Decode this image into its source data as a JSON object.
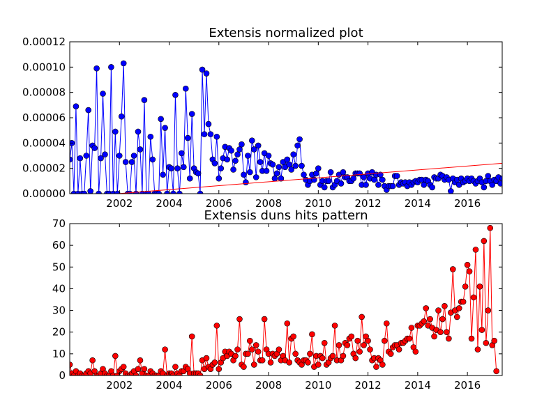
{
  "colors": {
    "blue_series": "#0000ff",
    "red_series": "#ff0000",
    "marker_edge": "#000000"
  },
  "chart_data": [
    {
      "type": "line",
      "title": "Extensis normalized plot",
      "xlabel": "",
      "ylabel": "",
      "xlim": [
        2000.0,
        2017.4
      ],
      "ylim": [
        0,
        0.00012
      ],
      "xticks": [
        2002,
        2004,
        2006,
        2008,
        2010,
        2012,
        2014,
        2016
      ],
      "xtick_labels": [
        "2002",
        "2004",
        "2006",
        "2008",
        "2010",
        "2012",
        "2014",
        "2016"
      ],
      "yticks": [
        0,
        2e-05,
        4e-05,
        6e-05,
        8e-05,
        0.0001,
        0.00012
      ],
      "ytick_labels": [
        "0.00000",
        "0.00002",
        "0.00004",
        "0.00006",
        "0.00008",
        "0.00010",
        "0.00012"
      ],
      "grid": false,
      "series": [
        {
          "color": "#0000ff",
          "marker": "circle",
          "x_start": 2000.0,
          "x_step": 0.08333,
          "values": [
            2.7e-05,
            4e-05,
            0,
            6.9e-05,
            0,
            2.8e-05,
            0,
            0,
            3e-05,
            6.6e-05,
            2e-06,
            3.8e-05,
            3.6e-05,
            9.9e-05,
            0,
            2.8e-05,
            7.9e-05,
            3.1e-05,
            0,
            0,
            0.0001,
            0,
            4.9e-05,
            0,
            3e-05,
            6.1e-05,
            0.000103,
            2.5e-05,
            0,
            0,
            2.5e-05,
            3e-05,
            0,
            4.9e-05,
            3.5e-05,
            0,
            7.4e-05,
            0,
            0,
            4.5e-05,
            2.7e-05,
            0,
            0,
            0,
            5.9e-05,
            1.5e-05,
            5.2e-05,
            0,
            2.1e-05,
            2e-05,
            0,
            7.8e-05,
            2e-05,
            0,
            3.2e-05,
            2.1e-05,
            8.3e-05,
            4.4e-05,
            1.2e-05,
            6.3e-05,
            2e-05,
            1.7e-05,
            1.6e-05,
            0,
            9.8e-05,
            4.7e-05,
            9.5e-05,
            5.5e-05,
            4.7e-05,
            2.7e-05,
            2.4e-05,
            4.5e-05,
            1.2e-05,
            2e-05,
            2.8e-05,
            3.7e-05,
            2.7e-05,
            3.6e-05,
            3.4e-05,
            1.9e-05,
            2.6e-05,
            3.1e-05,
            3.5e-05,
            3.9e-05,
            1.5e-05,
            9e-06,
            3e-05,
            1.7e-05,
            4.2e-05,
            3.5e-05,
            1.3e-05,
            3.8e-05,
            2.5e-05,
            1.8e-05,
            3.2e-05,
            1.8e-05,
            3e-05,
            2.4e-05,
            2.3e-05,
            1.2e-05,
            1.6e-05,
            2.1e-05,
            1.2e-05,
            2.5e-05,
            2.1e-05,
            2.7e-05,
            2.3e-05,
            1.9e-05,
            3.1e-05,
            2.2e-05,
            3.8e-05,
            4.3e-05,
            2.2e-05,
            1.5e-05,
            1.1e-05,
            7e-06,
            1e-05,
            1.5e-05,
            1.1e-05,
            1.6e-05,
            2e-05,
            7e-06,
            1e-05,
            5e-06,
            1e-05,
            1e-05,
            1.7e-05,
            5e-06,
            7e-06,
            1e-05,
            1.5e-05,
            8e-06,
            1.7e-05,
            1.3e-05,
            1.3e-05,
            1e-05,
            1e-05,
            1.2e-05,
            1.6e-05,
            1.6e-05,
            1.6e-05,
            7e-06,
            1.3e-05,
            7e-06,
            1.6e-05,
            1.2e-05,
            1.7e-05,
            1.1e-05,
            1.5e-05,
            7e-06,
            1.5e-05,
            1.1e-05,
            6e-06,
            3e-06,
            6e-06,
            6e-06,
            6e-06,
            1.4e-05,
            1.4e-05,
            7e-06,
            9e-06,
            8e-06,
            9e-06,
            6e-06,
            9e-06,
            7e-06,
            9e-06,
            1e-05,
            9e-06,
            1.1e-05,
            1.1e-05,
            7e-06,
            1.1e-05,
            1e-05,
            7e-06,
            5e-06,
            1.3e-05,
            1.2e-05,
            1.2e-05,
            1.5e-05,
            1.4e-05,
            1.1e-05,
            1.3e-05,
            1.1e-05,
            2e-06,
            1.2e-05,
            9e-06,
            1.1e-05,
            7e-06,
            1.2e-05,
            9e-06,
            1e-05,
            1.2e-05,
            1e-05,
            1.2e-05,
            1e-05,
            8e-06,
            1e-05,
            1.2e-05,
            9e-06,
            5e-06,
            1e-05,
            1.4e-05,
            1e-05,
            7e-06,
            1.1e-05,
            1e-05,
            1.3e-05,
            8e-06,
            1.2e-05,
            5e-06,
            9e-06,
            7e-06,
            1.9e-05,
            1.1e-05,
            1.8e-05,
            5e-06,
            7e-06,
            2e-06
          ]
        },
        {
          "color": "#ff0000",
          "marker": "none",
          "x": [
            2000.0,
            2017.4
          ],
          "values": [
            -3e-06,
            2.4e-05
          ]
        }
      ]
    },
    {
      "type": "line",
      "title": "Extensis duns hits pattern",
      "xlabel": "",
      "ylabel": "",
      "xlim": [
        2000.0,
        2017.4
      ],
      "ylim": [
        0,
        70
      ],
      "xticks": [
        2002,
        2004,
        2006,
        2008,
        2010,
        2012,
        2014,
        2016
      ],
      "xtick_labels": [
        "2002",
        "2004",
        "2006",
        "2008",
        "2010",
        "2012",
        "2014",
        "2016"
      ],
      "yticks": [
        0,
        10,
        20,
        30,
        40,
        50,
        60,
        70
      ],
      "ytick_labels": [
        "0",
        "10",
        "20",
        "30",
        "40",
        "50",
        "60",
        "70"
      ],
      "grid": false,
      "series": [
        {
          "color": "#ff0000",
          "marker": "circle",
          "x_start": 2000.0,
          "x_step": 0.08333,
          "values": [
            5,
            1,
            0,
            2,
            0,
            1,
            0,
            0,
            1,
            2,
            1,
            7,
            2,
            0,
            0,
            1,
            3,
            1,
            0,
            0,
            2,
            0,
            9,
            0,
            2,
            3,
            4,
            1,
            0,
            0,
            1,
            2,
            0,
            3,
            7,
            1,
            3,
            0,
            0,
            2,
            1,
            0,
            0,
            0,
            2,
            1,
            12,
            0,
            1,
            1,
            0,
            4,
            1,
            0,
            2,
            2,
            4,
            3,
            1,
            18,
            1,
            1,
            1,
            0,
            7,
            3,
            8,
            4,
            3,
            5,
            6,
            23,
            3,
            6,
            8,
            11,
            9,
            11,
            10,
            7,
            9,
            12,
            26,
            5,
            4,
            10,
            10,
            16,
            12,
            5,
            14,
            11,
            7,
            7,
            26,
            12,
            10,
            6,
            10,
            9,
            10,
            12,
            7,
            9,
            7,
            24,
            6,
            17,
            18,
            10,
            7,
            6,
            5,
            7,
            7,
            6,
            10,
            19,
            4,
            9,
            5,
            9,
            8,
            15,
            5,
            6,
            8,
            9,
            23,
            7,
            14,
            7,
            9,
            15,
            14,
            17,
            18,
            10,
            8,
            16,
            11,
            27,
            14,
            18,
            16,
            12,
            7,
            8,
            4,
            8,
            7,
            5,
            16,
            24,
            11,
            10,
            13,
            14,
            14,
            12,
            15,
            15,
            16,
            17,
            17,
            22,
            13,
            11,
            23,
            23,
            24,
            25,
            31,
            23,
            26,
            22,
            18,
            21,
            30,
            20,
            26,
            32,
            20,
            17,
            29,
            49,
            30,
            27,
            31,
            34,
            34,
            41,
            51,
            48,
            17,
            36,
            58,
            12,
            41,
            21,
            62,
            15,
            30,
            68,
            14,
            16,
            2
          ]
        }
      ]
    }
  ]
}
